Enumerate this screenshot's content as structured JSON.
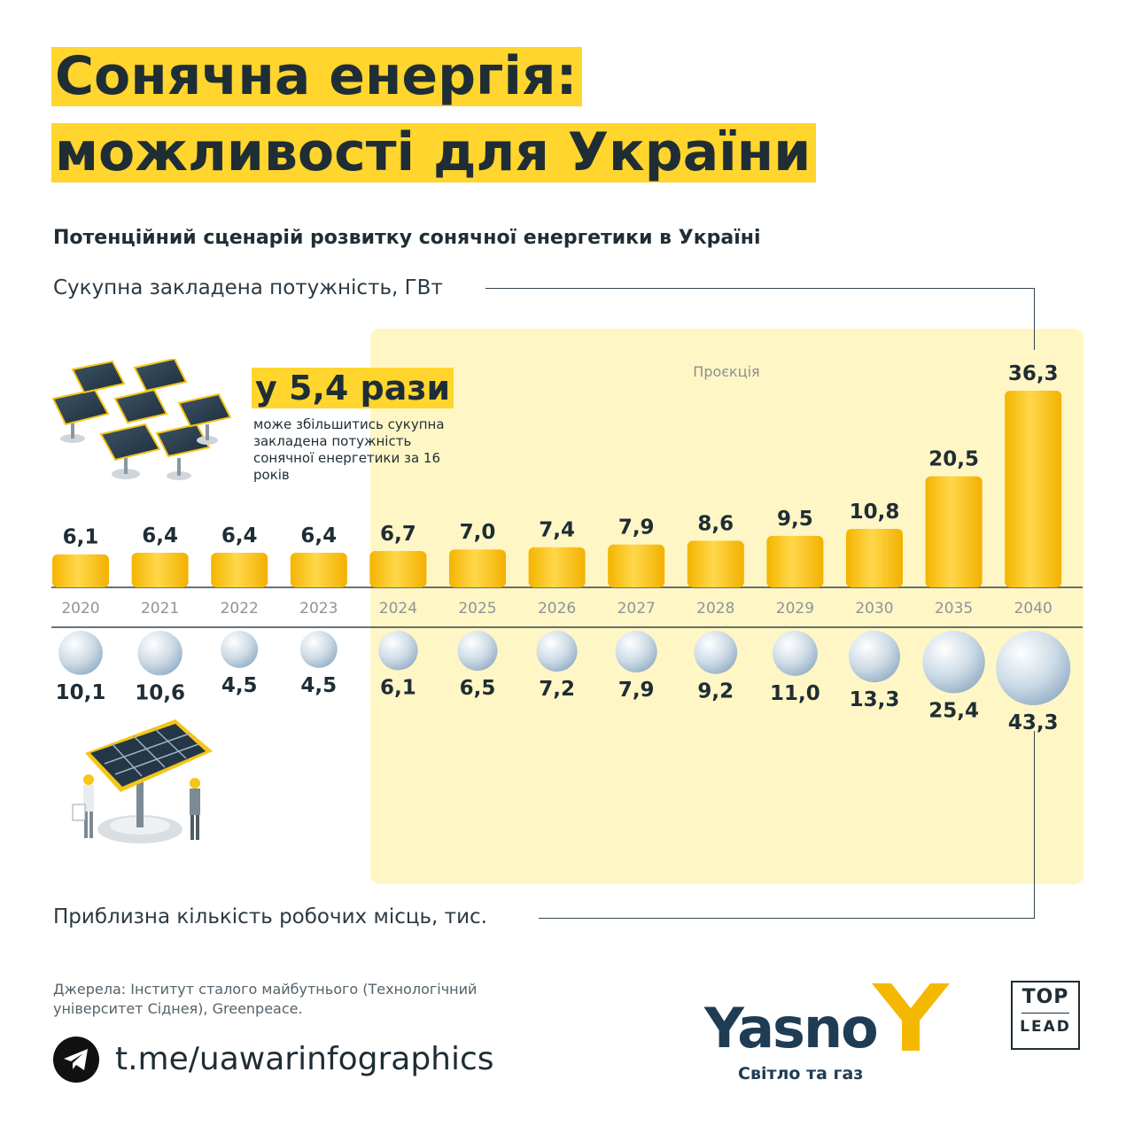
{
  "title": {
    "line1": "Сонячна енергія:",
    "line2": "можливості для України"
  },
  "subtitle": "Потенційний сценарій розвитку сонячної енергетики в Україні",
  "top_label": "Сукупна закладена потужність, ГВт",
  "bottom_label": "Приблизна кількість робочих місць, тис.",
  "projection_label": "Проєкція",
  "highlight": {
    "big": "у 5,4 рази",
    "text": "може збільшитись сукупна закладена потужність сонячної енергетики за 16 років"
  },
  "colors": {
    "accent_yellow": "#ffd52e",
    "bar_yellow": "#fcc21b",
    "projection_bg": "#fff6c5",
    "circle_blue": "#a9c3d8",
    "text_dark": "#1f2d35",
    "brand_navy": "#1f3c55"
  },
  "chart_data": {
    "type": "bar",
    "categories": [
      "2020",
      "2021",
      "2022",
      "2023",
      "2024",
      "2025",
      "2026",
      "2027",
      "2028",
      "2029",
      "2030",
      "2035",
      "2040"
    ],
    "series": [
      {
        "name": "Сукупна закладена потужність, ГВт",
        "values": [
          6.1,
          6.4,
          6.4,
          6.4,
          6.7,
          7.0,
          7.4,
          7.9,
          8.6,
          9.5,
          10.8,
          20.5,
          36.3
        ],
        "labels": [
          "6,1",
          "6,4",
          "6,4",
          "6,4",
          "6,7",
          "7,0",
          "7,4",
          "7,9",
          "8,6",
          "9,5",
          "10,8",
          "20,5",
          "36,3"
        ]
      },
      {
        "name": "Приблизна кількість робочих місць, тис.",
        "values": [
          10.1,
          10.6,
          4.5,
          4.5,
          6.1,
          6.5,
          7.2,
          7.9,
          9.2,
          11.0,
          13.3,
          25.4,
          43.3
        ],
        "labels": [
          "10,1",
          "10,6",
          "4,5",
          "4,5",
          "6,1",
          "6,5",
          "7,2",
          "7,9",
          "9,2",
          "11,0",
          "13,3",
          "25,4",
          "43,3"
        ]
      }
    ],
    "projection_from": "2024"
  },
  "footer": {
    "sources": "Джерела: Інститут сталого майбутнього (Технологічний університет Сіднея), Greenpeace.",
    "link": "t.me/uawarinfographics",
    "brand": "Yasno",
    "tagline": "Світло та газ",
    "partner_top": "TOP",
    "partner_bottom": "LEAD"
  }
}
